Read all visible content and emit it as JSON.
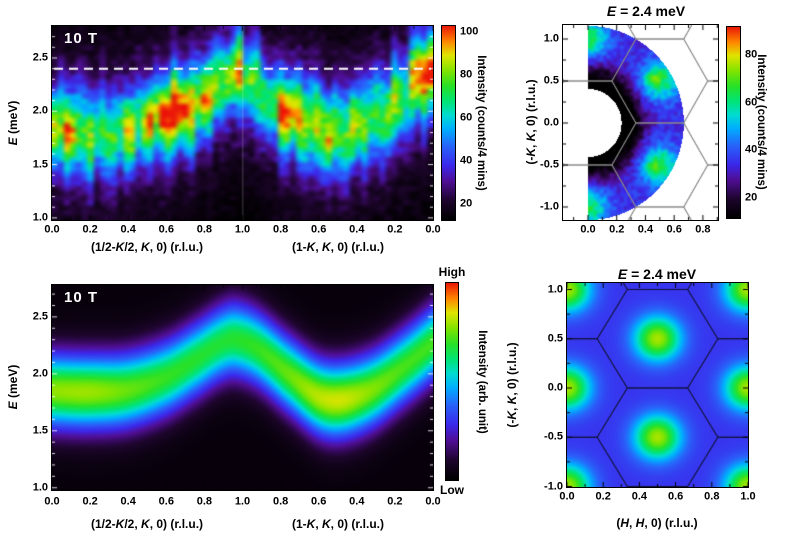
{
  "figure": {
    "background": "#ffffff"
  },
  "colors": {
    "colormap": [
      "#000000",
      "#1e052d",
      "#500f96",
      "#3c28eb",
      "#2864fa",
      "#00afff",
      "#00dcd2",
      "#00e478",
      "#28e128",
      "#82e400",
      "#e1e400",
      "#ff8700",
      "#eb1908"
    ],
    "colormap_stops": [
      0,
      0.1,
      0.2,
      0.28,
      0.38,
      0.47,
      0.54,
      0.61,
      0.69,
      0.77,
      0.85,
      0.92,
      1.0
    ],
    "frame": "#000000",
    "dashed_line": "#ffffff",
    "hexagon_line_gray": "#8a8a8a",
    "hexagon_line_dark": "rgba(15,15,45,0.85)",
    "panel_label_color": "#ffffff",
    "text_color": "#000000"
  },
  "chart_data": [
    {
      "id": "panel-a",
      "type": "heatmap",
      "description": "measured spin-wave spectrum",
      "panel_label": "10 T",
      "ylabel": "E (meV)",
      "xlabels": [
        "(1/2-K/2, K, 0) (r.l.u.)",
        "(1-K, K, 0) (r.l.u.)"
      ],
      "x_tick_labels": [
        "0.0",
        "0.2",
        "0.4",
        "0.6",
        "0.8",
        "1.0",
        "0.8",
        "0.6",
        "0.4",
        "0.2",
        "0.0"
      ],
      "y_tick_labels": [
        "1.0",
        "1.5",
        "2.0",
        "2.5"
      ],
      "y_range": [
        0.98,
        2.8
      ],
      "dashed_line_E": 2.4,
      "colorbar": {
        "label": "Intensity (counts/4 mins)",
        "tick_labels": [
          "20",
          "40",
          "60",
          "80",
          "100"
        ],
        "range": [
          12.6,
          102.8
        ]
      },
      "dispersion": {
        "x": [
          0,
          0.07,
          0.14,
          0.22,
          0.3,
          0.38,
          0.44,
          0.48,
          0.52,
          0.58,
          0.64,
          0.7,
          0.76,
          0.83,
          0.9,
          0.96,
          1.0
        ],
        "E": [
          1.85,
          1.8,
          1.78,
          1.85,
          1.96,
          2.08,
          2.25,
          2.33,
          2.27,
          2.05,
          1.93,
          1.83,
          1.8,
          1.9,
          2.05,
          2.28,
          2.35
        ],
        "amp": [
          0.88,
          0.92,
          0.72,
          0.85,
          1.02,
          0.82,
          0.78,
          0.85,
          0.65,
          0.85,
          1.0,
          0.82,
          0.92,
          0.72,
          0.78,
          0.88,
          0.95
        ]
      },
      "sigma_E": 0.26,
      "background_level": 12,
      "peak_scale": 62,
      "noise": true,
      "hot_spots": [
        [
          0.29,
          2.0,
          16
        ],
        [
          0.62,
          2.0,
          15
        ],
        [
          0.05,
          1.78,
          9
        ],
        [
          0.975,
          2.4,
          15
        ],
        [
          0.48,
          2.4,
          9
        ],
        [
          0.4,
          2.08,
          8
        ]
      ]
    },
    {
      "id": "panel-b",
      "type": "heatmap",
      "description": "measured constant-energy map, half annulus",
      "title": "E = 2.4 meV",
      "ylabel": "(-K, K, 0) (r.l.u.)",
      "x_tick_labels": [
        "0.0",
        "0.2",
        "0.4",
        "0.6",
        "0.8"
      ],
      "y_tick_labels": [
        "-1.0",
        "-0.5",
        "0.0",
        "0.5",
        "1.0"
      ],
      "x_range": [
        -0.174,
        0.905
      ],
      "y_range": [
        -1.155,
        1.167
      ],
      "annulus": {
        "r_inner": 0.405,
        "r_outer": 1.155
      },
      "gamma_blobs": [
        [
          0,
          1
        ],
        [
          0,
          -1
        ],
        [
          0.5,
          0.5
        ],
        [
          0.5,
          -0.5
        ],
        [
          1,
          0
        ]
      ],
      "extra_spots": [
        [
          0.45,
          0.53,
          9
        ],
        [
          0.45,
          -0.53,
          9
        ]
      ],
      "suppression": {
        "center": [
          0,
          0
        ],
        "amp": 32,
        "r0": 0.4,
        "width": 0.27
      },
      "background_level": 34,
      "blob_amp": 30,
      "blob_sigma": 0.17,
      "noise_amp": 5,
      "colorbar": {
        "label": "Intensity (counts/4 mins)",
        "tick_labels": [
          "20",
          "40",
          "60",
          "80"
        ],
        "range": [
          11.4,
          91.8
        ]
      },
      "hexagon_centers": [
        [
          0,
          0
        ],
        [
          0.5,
          0.5
        ],
        [
          0.5,
          -0.5
        ],
        [
          0,
          1
        ],
        [
          0,
          -1
        ],
        [
          1,
          0
        ],
        [
          1,
          1
        ],
        [
          1,
          -1
        ],
        [
          0.5,
          1.5
        ],
        [
          0.5,
          -1.5
        ]
      ]
    },
    {
      "id": "panel-c",
      "type": "heatmap",
      "description": "calculated spin-wave spectrum",
      "panel_label": "10 T",
      "ylabel": "E (meV)",
      "xlabels": [
        "(1/2-K/2, K, 0) (r.l.u.)",
        "(1-K, K, 0) (r.l.u.)"
      ],
      "x_tick_labels": [
        "0.0",
        "0.2",
        "0.4",
        "0.6",
        "0.8",
        "1.0",
        "0.8",
        "0.6",
        "0.4",
        "0.2",
        "0.0"
      ],
      "y_tick_labels": [
        "1.0",
        "1.5",
        "2.0",
        "2.5"
      ],
      "y_range": [
        0.98,
        2.78
      ],
      "colorbar": {
        "label": "Intensity (arb. unit)",
        "high_label": "High",
        "low_label": "Low"
      },
      "dispersion": {
        "x": [
          0,
          0.1,
          0.2,
          0.3,
          0.38,
          0.44,
          0.48,
          0.54,
          0.62,
          0.7,
          0.76,
          0.84,
          0.92,
          1.0
        ],
        "E": [
          1.85,
          1.84,
          1.86,
          1.97,
          2.13,
          2.26,
          2.3,
          2.22,
          2.0,
          1.8,
          1.77,
          1.86,
          2.05,
          2.27
        ],
        "amp": [
          0.86,
          0.87,
          0.82,
          0.77,
          0.75,
          0.74,
          0.75,
          0.77,
          0.82,
          0.9,
          0.92,
          0.85,
          0.79,
          0.78
        ]
      },
      "sigma_E": 0.23,
      "base_t": 0.025,
      "scale_t": 0.88,
      "noise": false
    },
    {
      "id": "panel-d",
      "type": "heatmap",
      "description": "calculated constant-energy map",
      "title": "E = 2.4 meV",
      "xlabel": "(H, H, 0) (r.l.u.)",
      "ylabel": "(-K, K, 0) (r.l.u.)",
      "x_tick_labels": [
        "0.0",
        "0.2",
        "0.4",
        "0.6",
        "0.8",
        "1.0"
      ],
      "y_tick_labels": [
        "-1.0",
        "-0.5",
        "0.0",
        "0.5",
        "1.0"
      ],
      "x_range": [
        0,
        1
      ],
      "y_range": [
        -1.005,
        1.066
      ],
      "gamma_blobs": [
        [
          0,
          0
        ],
        [
          1,
          0
        ],
        [
          0.5,
          0.5
        ],
        [
          0.5,
          -0.5
        ],
        [
          0,
          1
        ],
        [
          0,
          -1
        ],
        [
          1,
          1
        ],
        [
          1,
          -1
        ]
      ],
      "base_t": 0.3,
      "blob_amp_t": 0.5,
      "blob_sigma": 0.16,
      "hexagon_centers": [
        [
          0,
          0
        ],
        [
          0.5,
          0.5
        ],
        [
          0.5,
          -0.5
        ],
        [
          0,
          1
        ],
        [
          0,
          -1
        ],
        [
          1,
          0
        ],
        [
          1,
          1
        ],
        [
          1,
          -1
        ],
        [
          0.5,
          1.5
        ],
        [
          0.5,
          -1.5
        ]
      ]
    }
  ]
}
